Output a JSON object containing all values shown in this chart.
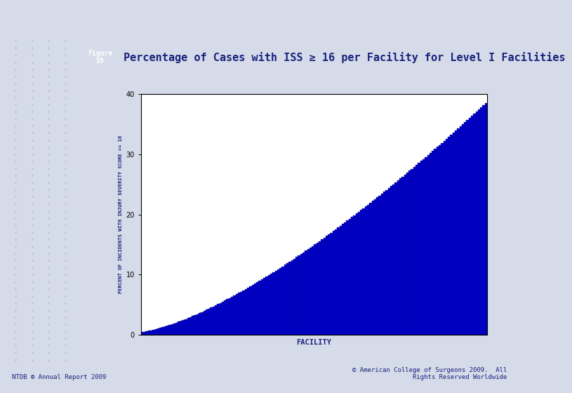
{
  "title": "Percentage of Cases with ISS ≥ 16 per Facility for Level I Facilities",
  "xlabel": "FACILITY",
  "ylabel": "PERCENT OF INCIDENTS WITH INJURY SEVERITY SCORE >= 16",
  "ylim": [
    0,
    40
  ],
  "yticks": [
    0,
    10,
    20,
    30,
    40
  ],
  "n_bars": 150,
  "bar_color": "#0000cc",
  "bar_edge_color": "#00007a",
  "background_color": "#ffffff",
  "page_background": "#d5dbe8",
  "figure_label_line1": "Figure",
  "figure_label_line2": "59",
  "figure_label_bg": "#3a3a8c",
  "figure_label_color": "#ffffff",
  "title_color": "#1a237e",
  "axis_label_color": "#1a237e",
  "footer_left": "NTDB ® Annual Report 2009",
  "footer_right": "© American College of Surgeons 2009.  All\nRights Reserved Worldwide",
  "footer_color": "#1a237e",
  "min_val": 0.5,
  "max_val": 38.5,
  "curve_power": 1.4,
  "dot_color": "#aab5cc",
  "dot_rows": 46,
  "dot_cols": 4
}
